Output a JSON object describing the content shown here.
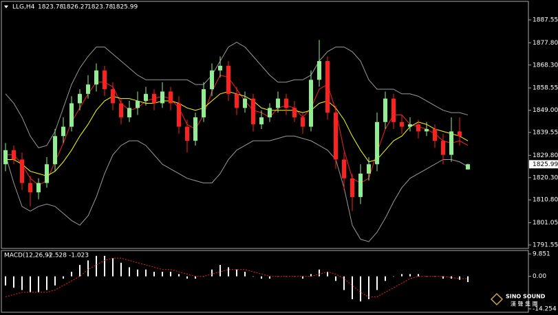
{
  "chart_data": [
    {
      "type": "candlestick",
      "title": "LLG,H4",
      "header_values": [
        1823.78,
        1826.27,
        1823.78,
        1825.99
      ],
      "open": [
        1826,
        1832,
        1828,
        1818,
        1814,
        1818,
        1826,
        1838,
        1842,
        1852,
        1856,
        1860,
        1866,
        1858,
        1852,
        1846,
        1850,
        1853,
        1856,
        1852,
        1857,
        1852,
        1842,
        1836,
        1846,
        1858,
        1866,
        1868,
        1856,
        1850,
        1854,
        1843,
        1846,
        1850,
        1854,
        1850,
        1846,
        1842,
        1862,
        1870,
        1848,
        1828,
        1820,
        1812,
        1822,
        1826,
        1844,
        1854,
        1844,
        1842,
        1843,
        1840,
        1841,
        1836,
        1830,
        1840,
        1823.78
      ],
      "high": [
        1835,
        1834,
        1831,
        1821,
        1820,
        1829,
        1841,
        1846,
        1855,
        1858,
        1864,
        1869,
        1868,
        1861,
        1854,
        1853,
        1857,
        1859,
        1858,
        1861,
        1859,
        1855,
        1845,
        1848,
        1861,
        1869,
        1872,
        1870,
        1859,
        1857,
        1856,
        1849,
        1852,
        1857,
        1856,
        1853,
        1848,
        1866,
        1879,
        1872,
        1851,
        1831,
        1822,
        1826,
        1829,
        1848,
        1857,
        1856,
        1847,
        1846,
        1845,
        1844,
        1843,
        1839,
        1846,
        1846,
        1826.27
      ],
      "low": [
        1823,
        1826,
        1815,
        1808,
        1811,
        1816,
        1823,
        1835,
        1840,
        1849,
        1854,
        1857,
        1855,
        1849,
        1843,
        1844,
        1847,
        1851,
        1849,
        1850,
        1849,
        1839,
        1831,
        1834,
        1844,
        1855,
        1863,
        1853,
        1847,
        1848,
        1840,
        1841,
        1844,
        1848,
        1847,
        1844,
        1839,
        1840,
        1859,
        1845,
        1824,
        1815,
        1806,
        1809,
        1819,
        1823,
        1841,
        1841,
        1839,
        1840,
        1837,
        1838,
        1833,
        1826,
        1827,
        1834,
        1823.78
      ],
      "close": [
        1832,
        1828,
        1818,
        1814,
        1818,
        1826,
        1838,
        1842,
        1852,
        1856,
        1860,
        1866,
        1858,
        1852,
        1846,
        1850,
        1853,
        1856,
        1852,
        1857,
        1852,
        1842,
        1836,
        1846,
        1858,
        1866,
        1868,
        1856,
        1850,
        1854,
        1843,
        1846,
        1850,
        1854,
        1850,
        1846,
        1842,
        1862,
        1870,
        1848,
        1828,
        1820,
        1812,
        1822,
        1826,
        1844,
        1854,
        1844,
        1842,
        1843,
        1840,
        1841,
        1836,
        1830,
        1840,
        1838,
        1825.99
      ],
      "up_color": "#90ee90",
      "down_color": "#ff2020",
      "lines": [
        {
          "color": "#9a9a9a",
          "values": [
            1856,
            1852,
            1846,
            1838,
            1833,
            1834,
            1840,
            1850,
            1860,
            1867,
            1872,
            1876,
            1876,
            1873,
            1870,
            1867,
            1864,
            1862,
            1862,
            1862,
            1862,
            1862,
            1862,
            1860,
            1860,
            1864,
            1870,
            1876,
            1878,
            1876,
            1872,
            1868,
            1864,
            1861,
            1861,
            1862,
            1862,
            1864,
            1870,
            1874,
            1876,
            1876,
            1874,
            1870,
            1862,
            1858,
            1858,
            1858,
            1856,
            1856,
            1855,
            1853,
            1851,
            1849,
            1848,
            1848,
            1847
          ]
        },
        {
          "color": "#9a9a9a",
          "values": [
            1830,
            1818,
            1808,
            1806,
            1808,
            1809,
            1808,
            1805,
            1802,
            1800,
            1804,
            1812,
            1822,
            1830,
            1834,
            1836,
            1836,
            1834,
            1830,
            1826,
            1824,
            1822,
            1820,
            1819,
            1818,
            1818,
            1822,
            1828,
            1832,
            1834,
            1836,
            1836,
            1836,
            1837,
            1838,
            1838,
            1837,
            1836,
            1834,
            1832,
            1828,
            1816,
            1800,
            1794,
            1793,
            1797,
            1803,
            1810,
            1816,
            1820,
            1822,
            1824,
            1826,
            1828,
            1828,
            1827,
            1825
          ]
        },
        {
          "color": "#ff2020",
          "values": [
            1830,
            1830,
            1826,
            1820,
            1817,
            1819,
            1827,
            1835,
            1844,
            1850,
            1856,
            1861,
            1861,
            1859,
            1852,
            1849,
            1850,
            1853,
            1854,
            1855,
            1854,
            1850,
            1843,
            1841,
            1847,
            1857,
            1864,
            1863,
            1858,
            1853,
            1849,
            1848,
            1846,
            1850,
            1851,
            1850,
            1846,
            1850,
            1858,
            1860,
            1849,
            1832,
            1820,
            1818,
            1820,
            1831,
            1841,
            1847,
            1847,
            1843,
            1842,
            1841,
            1839,
            1836,
            1835,
            1836,
            1834
          ]
        },
        {
          "color": "#ffff00",
          "values": [
            1828,
            1828,
            1826,
            1823,
            1822,
            1821,
            1823,
            1827,
            1832,
            1838,
            1843,
            1849,
            1853,
            1855,
            1854,
            1854,
            1853,
            1852,
            1852,
            1853,
            1853,
            1852,
            1850,
            1849,
            1850,
            1853,
            1856,
            1857,
            1856,
            1855,
            1853,
            1850,
            1849,
            1849,
            1849,
            1849,
            1848,
            1849,
            1852,
            1853,
            1850,
            1845,
            1838,
            1832,
            1827,
            1828,
            1832,
            1836,
            1838,
            1842,
            1844,
            1843,
            1841,
            1840,
            1839,
            1838,
            1836
          ]
        }
      ],
      "ylim": [
        1790.09,
        1895.45
      ],
      "yticks": [
        1887.55,
        {
          "value": 1877.8,
          "label": "1877.80"
        },
        {
          "value": 1868.3,
          "label": "1868.30"
        },
        1858.55,
        {
          "value": 1849,
          "label": "1849.00"
        },
        1839.55,
        {
          "value": 1829.8,
          "label": "1829.80"
        },
        {
          "value": 1820.3,
          "label": "1820.30"
        },
        {
          "value": 1810.8,
          "label": "1810.80"
        },
        {
          "value": 1801.05,
          "label": "1801.05"
        },
        1791.55
      ]
    },
    {
      "type": "macd",
      "title": "MACD(12,26,9)",
      "histogram": {
        "color": "#ffffff",
        "values": [
          -4,
          -5,
          -6,
          -7,
          -7,
          -6,
          -4,
          -1,
          2,
          5,
          7,
          9,
          9,
          8,
          6,
          4,
          3,
          3,
          2,
          2,
          2,
          1,
          -1,
          -1,
          0,
          3,
          5,
          4,
          3,
          2,
          0,
          -1,
          -1,
          0,
          0,
          0,
          -1,
          1,
          3,
          2,
          -2,
          -6,
          -10,
          -11,
          -10,
          -6,
          -2,
          0,
          1,
          1,
          1,
          0,
          0,
          -1,
          -1,
          -1.5,
          -2.528
        ]
      },
      "signal": {
        "color": "#ff2020",
        "values": [
          -9,
          -8,
          -7,
          -7,
          -7,
          -7,
          -6,
          -4,
          -2,
          0,
          3,
          5,
          7,
          8,
          8,
          7,
          6,
          5,
          4,
          3,
          3,
          2,
          1,
          0,
          0,
          1,
          2,
          3,
          3,
          3,
          2,
          1,
          0,
          0,
          0,
          0,
          0,
          0,
          1,
          2,
          1,
          -1,
          -4,
          -7,
          -9,
          -9,
          -7,
          -5,
          -3,
          -1,
          0,
          0,
          0,
          0,
          -0.5,
          -1,
          -1.023
        ]
      },
      "ylim": [
        -14.254,
        9.851
      ],
      "yticks": [
        9.851,
        {
          "value": 0,
          "label": "0.00"
        },
        -14.254
      ]
    }
  ],
  "logo": {
    "name": "SINO SOUND",
    "chinese": "漢 聲 集 團"
  }
}
